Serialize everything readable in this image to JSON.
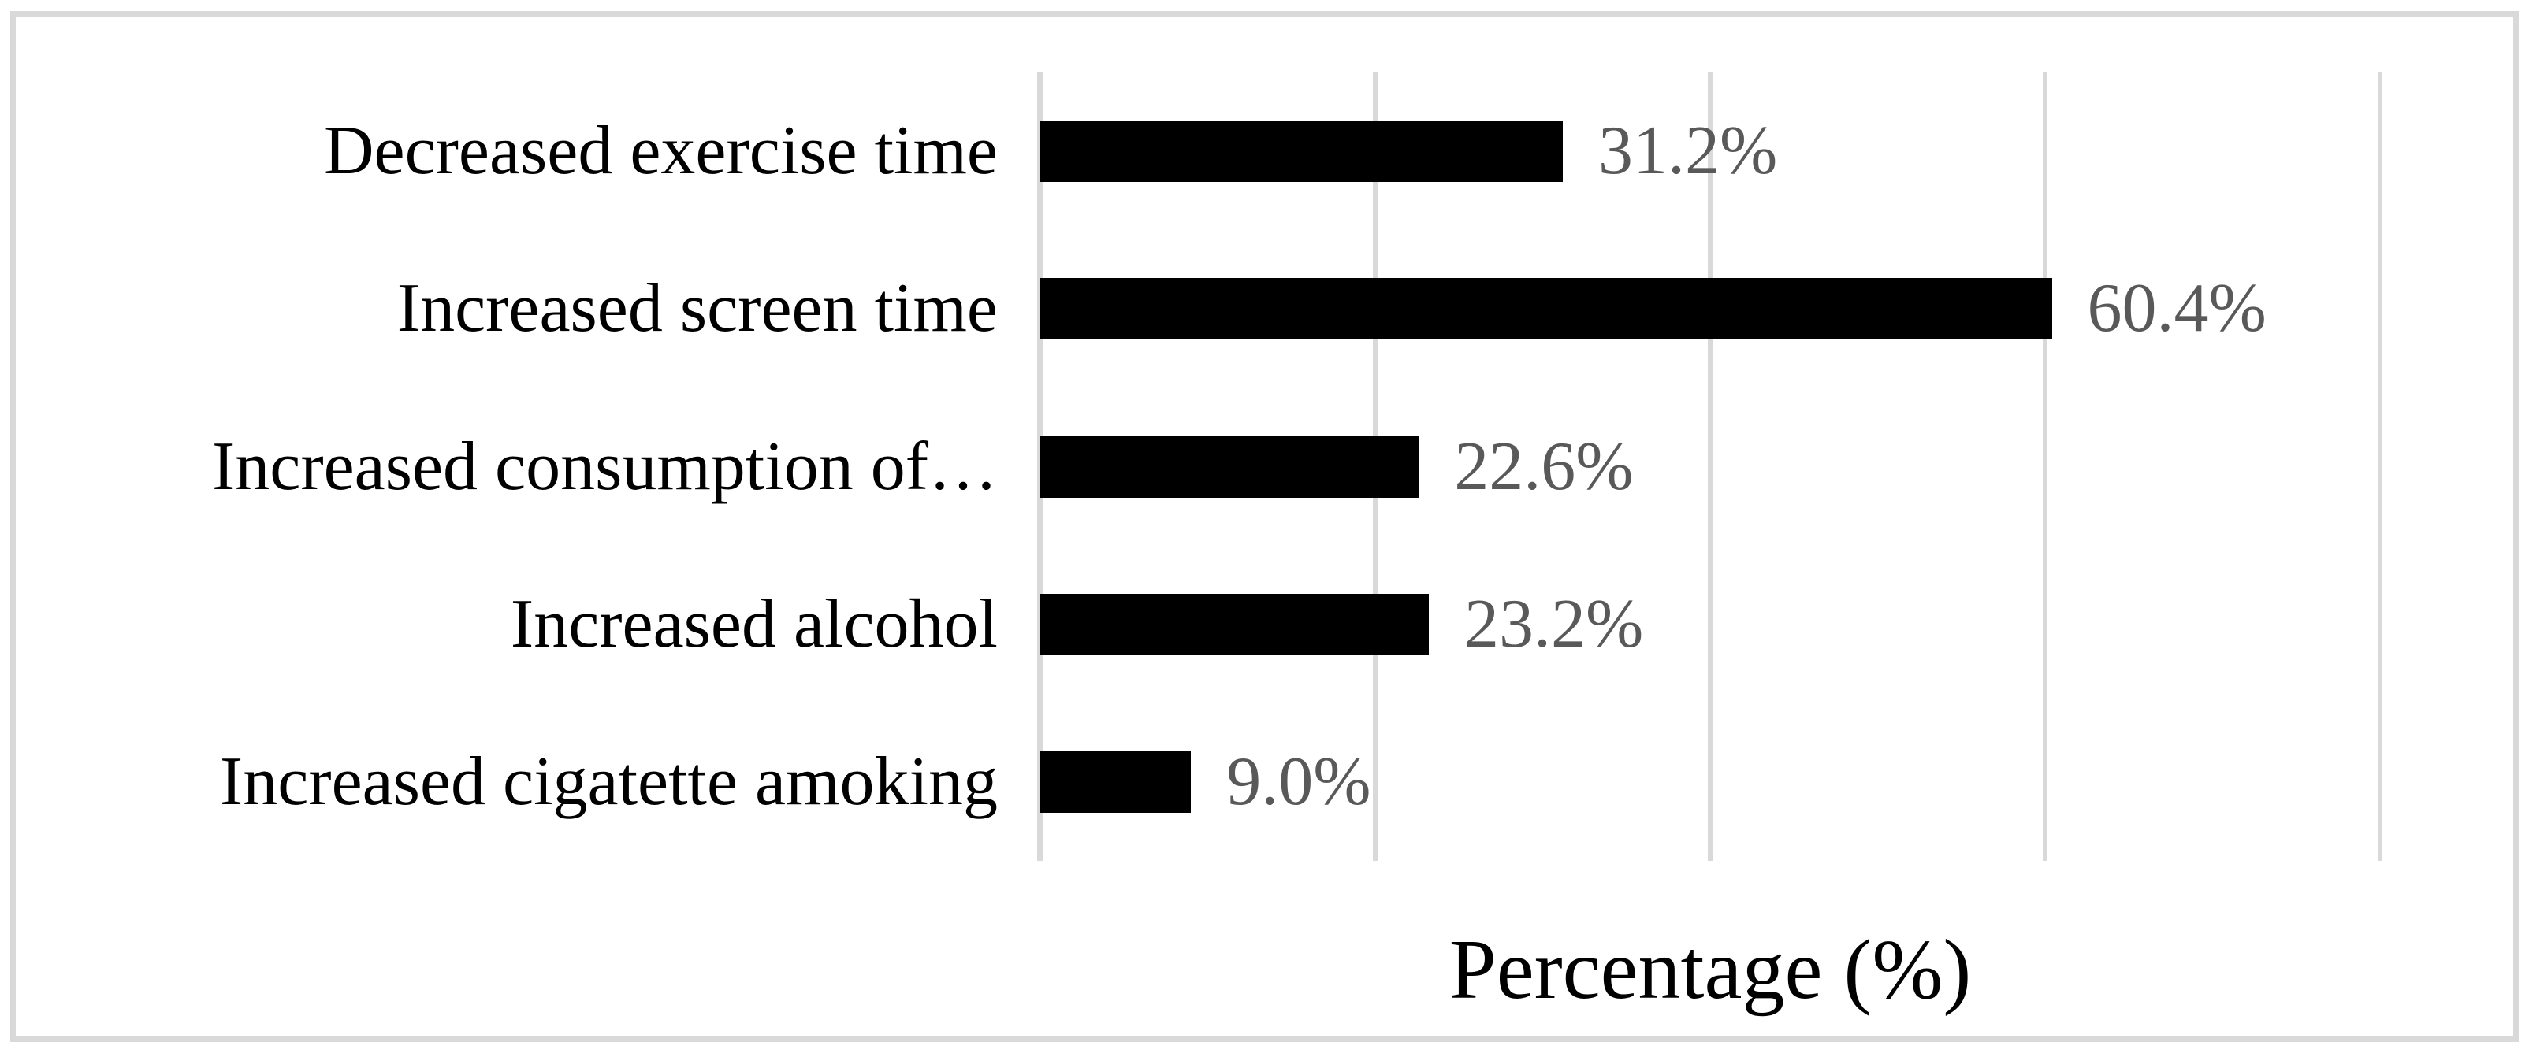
{
  "figure": {
    "background_color": "#ffffff",
    "border_color": "#d9d9d9"
  },
  "chart_data": {
    "type": "bar",
    "orientation": "horizontal",
    "title": "",
    "categories": [
      "Decreased exercise time",
      "Increased screen time",
      "Increased consumption of…",
      "Increased alcohol",
      "Increased cigatette amoking"
    ],
    "values": [
      31.2,
      60.4,
      22.6,
      23.2,
      9.0
    ],
    "value_labels": [
      "31.2%",
      "60.4%",
      "22.6%",
      "23.2%",
      "9.0%"
    ],
    "xlabel": "Percentage (%)",
    "ylabel": "",
    "xlim": [
      0,
      80
    ],
    "gridline_values": [
      0,
      20,
      40,
      60,
      80
    ],
    "grid": "on",
    "legend": "none",
    "bar_color": "#000000",
    "value_label_color": "#595959",
    "gridline_color": "#d9d9d9"
  }
}
